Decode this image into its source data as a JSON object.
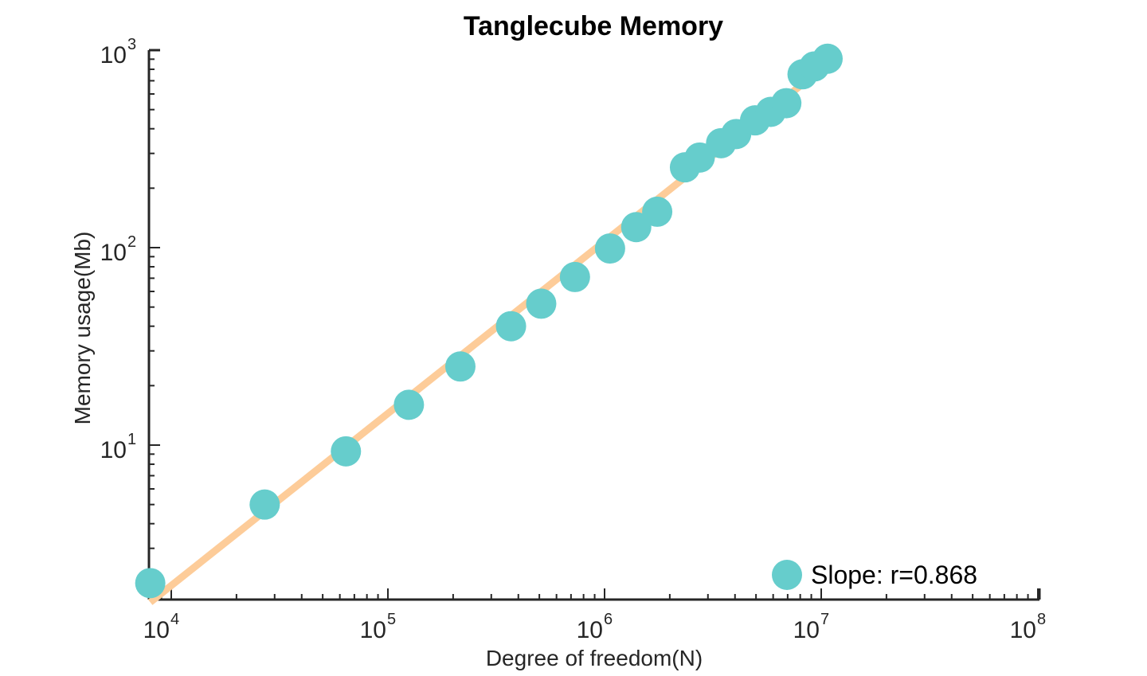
{
  "chart_data": {
    "type": "scatter",
    "title": "Tanglecube Memory",
    "xlabel": "Degree of freedom(N)",
    "ylabel": "Memory usage(Mb)",
    "xscale": "log",
    "yscale": "log",
    "xlim": [
      7800,
      100000000
    ],
    "ylim": [
      1.6,
      1000
    ],
    "x_ticks": [
      {
        "base": "10",
        "exp": "4",
        "value": 10000
      },
      {
        "base": "10",
        "exp": "5",
        "value": 100000
      },
      {
        "base": "10",
        "exp": "6",
        "value": 1000000
      },
      {
        "base": "10",
        "exp": "7",
        "value": 10000000
      },
      {
        "base": "10",
        "exp": "8",
        "value": 100000000
      }
    ],
    "y_ticks": [
      {
        "base": "10",
        "exp": "1",
        "value": 10
      },
      {
        "base": "10",
        "exp": "2",
        "value": 100
      },
      {
        "base": "10",
        "exp": "3",
        "value": 1000
      }
    ],
    "grid": false,
    "legend_position": "bottom-right",
    "series": [
      {
        "name": "Slope:  r=0.868",
        "type": "scatter",
        "color": "#66cdcc",
        "points": [
          [
            8000,
            2.0
          ],
          [
            27000,
            5.0
          ],
          [
            64000,
            9.3
          ],
          [
            125000,
            16
          ],
          [
            216000,
            25
          ],
          [
            370000,
            40
          ],
          [
            510000,
            52
          ],
          [
            730000,
            71
          ],
          [
            1060000,
            99
          ],
          [
            1400000,
            127
          ],
          [
            1750000,
            152
          ],
          [
            2350000,
            255
          ],
          [
            2750000,
            286
          ],
          [
            3450000,
            338
          ],
          [
            4050000,
            376
          ],
          [
            4950000,
            441
          ],
          [
            5850000,
            487
          ],
          [
            6900000,
            539
          ],
          [
            8200000,
            755
          ],
          [
            9300000,
            827
          ],
          [
            10700000,
            905
          ]
        ]
      },
      {
        "name": "fit",
        "type": "line",
        "color": "#fdcc99",
        "points": [
          [
            8000,
            1.6
          ],
          [
            10700000,
            850
          ]
        ]
      }
    ]
  }
}
